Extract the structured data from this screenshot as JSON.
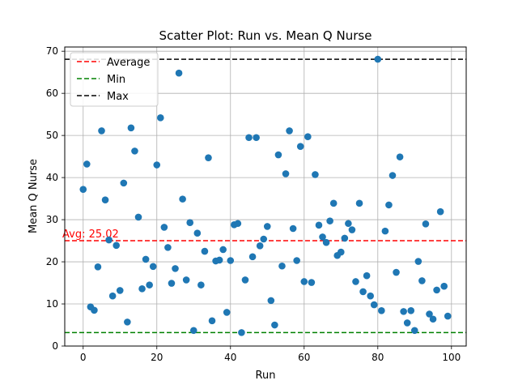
{
  "chart_data": {
    "type": "scatter",
    "title": "Scatter Plot: Run vs. Mean Q Nurse",
    "xlabel": "Run",
    "ylabel": "Mean Q Nurse",
    "xlim": [
      -5,
      104
    ],
    "ylim": [
      0,
      71
    ],
    "xticks": [
      0,
      20,
      40,
      60,
      80,
      100
    ],
    "yticks": [
      0,
      10,
      20,
      30,
      40,
      50,
      60,
      70
    ],
    "grid": true,
    "legend_position": "top-left",
    "point_color": "#1f77b4",
    "series": [
      {
        "x": [
          0,
          1,
          2,
          3,
          4,
          5,
          6,
          7,
          8,
          9,
          10,
          11,
          12,
          13,
          14,
          15,
          16,
          17,
          18,
          19,
          20,
          21,
          22,
          23,
          24,
          25,
          26,
          27,
          28,
          29,
          30,
          31,
          32,
          33,
          34,
          35,
          36,
          37,
          38,
          39,
          40,
          41,
          42,
          43,
          44,
          45,
          46,
          47,
          48,
          49,
          50,
          51,
          52,
          53,
          54,
          55,
          56,
          57,
          58,
          59,
          60,
          61,
          62,
          63,
          64,
          65,
          66,
          67,
          68,
          69,
          70,
          71,
          72,
          73,
          74,
          75,
          76,
          77,
          78,
          79,
          80,
          81,
          82,
          83,
          84,
          85,
          86,
          87,
          88,
          89,
          90,
          91,
          92,
          93,
          94,
          95,
          96,
          97,
          98,
          99
        ],
        "y": [
          37.2,
          43.2,
          9.3,
          8.5,
          18.8,
          51.1,
          34.7,
          25.2,
          11.9,
          23.9,
          13.2,
          38.7,
          5.7,
          51.8,
          46.3,
          30.6,
          13.6,
          20.6,
          14.5,
          18.9,
          43.0,
          54.2,
          28.2,
          23.4,
          14.9,
          18.4,
          64.8,
          34.9,
          15.7,
          29.3,
          3.7,
          26.8,
          14.5,
          22.5,
          44.7,
          6.0,
          20.2,
          20.4,
          22.9,
          8.0,
          20.3,
          28.8,
          29.1,
          3.2,
          15.7,
          49.5,
          21.2,
          49.5,
          23.8,
          25.4,
          28.4,
          10.8,
          5.0,
          45.4,
          19.0,
          40.9,
          51.1,
          27.9,
          20.3,
          47.4,
          15.3,
          49.7,
          15.1,
          40.7,
          28.7,
          25.9,
          24.6,
          29.7,
          33.9,
          21.5,
          22.3,
          25.6,
          29.1,
          27.6,
          15.3,
          33.9,
          12.9,
          16.7,
          11.9,
          9.8,
          68.1,
          8.4,
          27.3,
          33.5,
          40.5,
          17.5,
          44.9,
          8.2,
          5.5,
          8.4,
          3.7,
          20.1,
          15.5,
          29.0,
          7.6,
          6.4,
          13.3,
          31.9,
          14.2,
          7.1
        ]
      }
    ],
    "reference_lines": [
      {
        "name": "Average",
        "value": 25.02,
        "color": "#ff0000",
        "label": "Avg: 25.02"
      },
      {
        "name": "Min",
        "value": 3.2,
        "color": "#008000"
      },
      {
        "name": "Max",
        "value": 68.1,
        "color": "#000000"
      }
    ]
  }
}
